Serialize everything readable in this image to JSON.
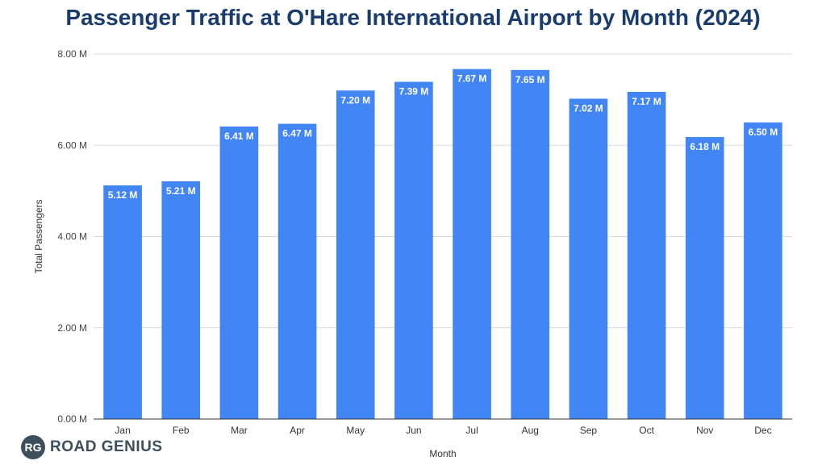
{
  "chart_data": {
    "type": "bar",
    "title": "Passenger Traffic at O'Hare International Airport by Month (2024)",
    "xlabel": "Month",
    "ylabel": "Total Passengers",
    "categories": [
      "Jan",
      "Feb",
      "Mar",
      "Apr",
      "May",
      "Jun",
      "Jul",
      "Aug",
      "Sep",
      "Oct",
      "Nov",
      "Dec"
    ],
    "values": [
      5.12,
      5.21,
      6.41,
      6.47,
      7.2,
      7.39,
      7.67,
      7.65,
      7.02,
      7.17,
      6.18,
      6.5
    ],
    "value_labels": [
      "5.12 M",
      "5.21 M",
      "6.41 M",
      "6.47 M",
      "7.20 M",
      "7.39 M",
      "7.67 M",
      "7.65 M",
      "7.02 M",
      "7.17 M",
      "6.18 M",
      "6.50 M"
    ],
    "yticks": [
      0,
      2,
      4,
      6,
      8
    ],
    "ytick_labels": [
      "0.00 M",
      "2.00 M",
      "4.00 M",
      "6.00 M",
      "8.00 M"
    ],
    "ylim": [
      0,
      8
    ],
    "grid": true,
    "bar_color": "#4285f4"
  },
  "brand": {
    "badge": "RG",
    "name": "ROAD GENIUS"
  }
}
